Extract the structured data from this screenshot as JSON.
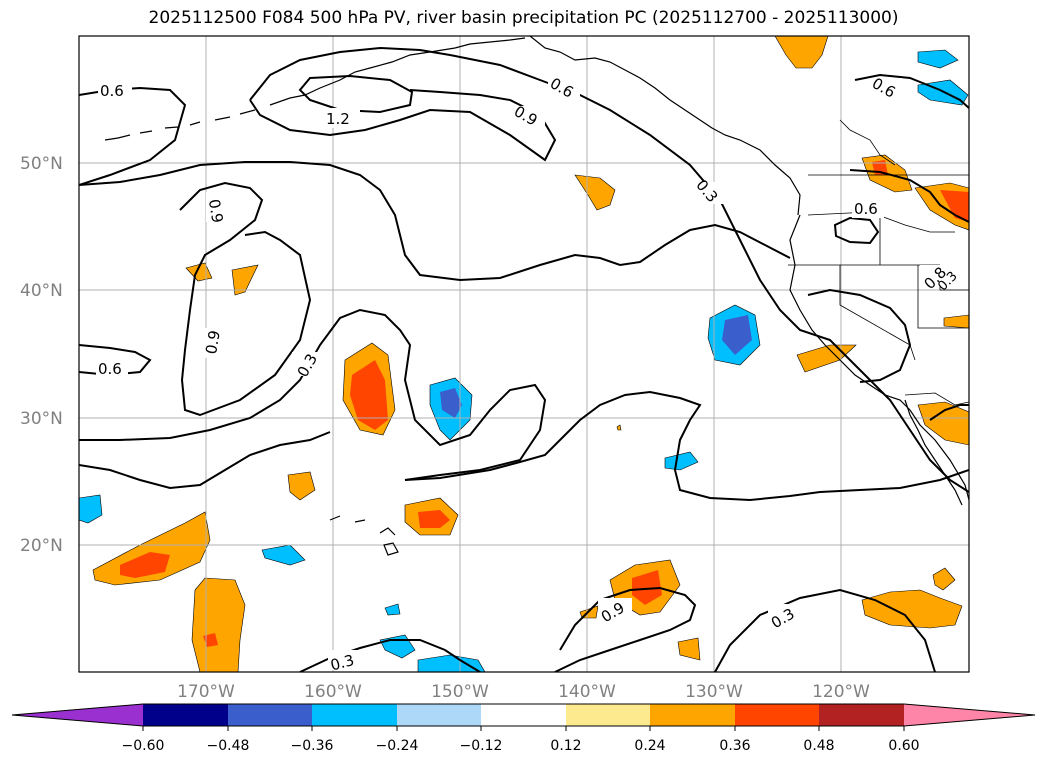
{
  "title": "2025112500 F084 500 hPa PV, river basin precipitation PC (2025112700 - 2025113000)",
  "lat_labels": [
    "50°N",
    "40°N",
    "30°N",
    "20°N"
  ],
  "lon_labels": [
    "170°W",
    "160°W",
    "150°W",
    "140°W",
    "130°W",
    "120°W"
  ],
  "contour_labels": [
    "0.6",
    "1.2",
    "0.9",
    "0.6",
    "0.6",
    "0.9",
    "0.9",
    "0.3",
    "0.6",
    "0.8",
    "0.6",
    "0.3",
    "0.9",
    "0.3",
    "0.3",
    "0.3"
  ],
  "colorbar": {
    "ticks": [
      "−0.60",
      "−0.48",
      "−0.36",
      "−0.24",
      "−0.12",
      "0.12",
      "0.24",
      "0.36",
      "0.48",
      "0.60"
    ],
    "colors": [
      "#9b30d0",
      "#00008b",
      "#3a5fcd",
      "#00bfff",
      "#add8f7",
      "#ffffff",
      "#fde98e",
      "#ffa500",
      "#ff4500",
      "#b22222",
      "#ff85a8"
    ]
  },
  "colors": {
    "blue_dark": "#3a5fcd",
    "blue": "#00bfff",
    "orange": "#ffa500",
    "red": "#ff4500",
    "grid": "#b0b0b0",
    "tick_text": "#808080"
  }
}
